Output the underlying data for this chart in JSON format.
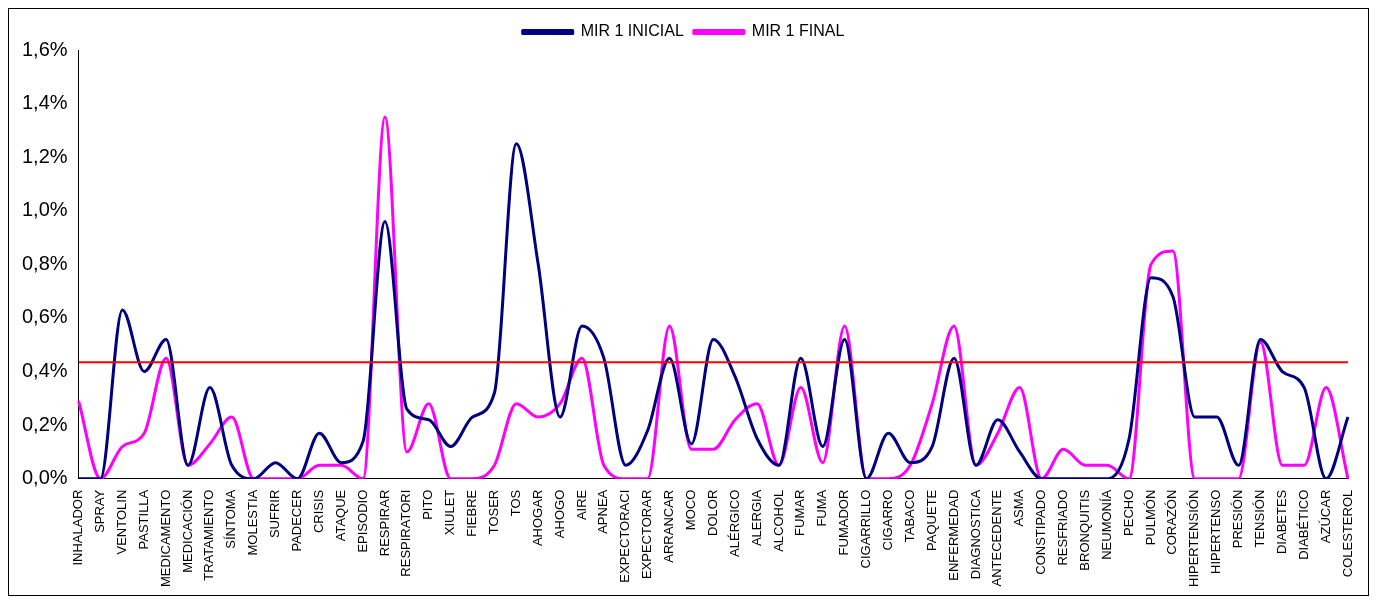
{
  "chart_data": {
    "type": "line",
    "categories": [
      "INHALADOR",
      "SPRAY",
      "VENTOLIN",
      "PASTILLA",
      "MEDICAMENTO",
      "MEDICACIÓN",
      "TRATAMIENTO",
      "SÍNTOMA",
      "MOLESTIA",
      "SUFRIR",
      "PADECER",
      "CRISIS",
      "ATAQUE",
      "EPISODIO",
      "RESPIRAR",
      "RESPIRATORI",
      "PITO",
      "XIULET",
      "FIEBRE",
      "TOSER",
      "TOS",
      "AHOGAR",
      "AHOGO",
      "AIRE",
      "APNEA",
      "EXPECTORACI",
      "EXPECTORAR",
      "ARRANCAR",
      "MOCO",
      "DOLOR",
      "ALÉRGICO",
      "ALERGIA",
      "ALCOHOL",
      "FUMAR",
      "FUMA",
      "FUMADOR",
      "CIGARRILLO",
      "CIGARRO",
      "TABACO",
      "PAQUETE",
      "ENFERMEDAD",
      "DIAGNOSTICA",
      "ANTECEDENTE",
      "ASMA",
      "CONSTIPADO",
      "RESFRIADO",
      "BRONQUITIS",
      "NEUMONÍA",
      "PECHO",
      "PULMÓN",
      "CORAZÓN",
      "HIPERTENSIÓN",
      "HIPERTENSO",
      "PRESIÓN",
      "TENSIÓN",
      "DIABETES",
      "DIABÉTICO",
      "AZÚCAR",
      "COLESTEROL"
    ],
    "series": [
      {
        "name": "MIR 1 INICIAL",
        "color": "#000080",
        "values": [
          0,
          0,
          0.63,
          0.4,
          0.52,
          0.05,
          0.34,
          0.05,
          0,
          0.06,
          0,
          0.17,
          0.06,
          0.14,
          0.96,
          0.26,
          0.22,
          0.12,
          0.23,
          0.32,
          1.25,
          0.8,
          0.23,
          0.57,
          0.45,
          0.05,
          0.18,
          0.45,
          0.13,
          0.52,
          0.38,
          0.15,
          0.05,
          0.45,
          0.12,
          0.52,
          0,
          0.17,
          0.06,
          0.12,
          0.45,
          0.05,
          0.22,
          0.1,
          0,
          0,
          0,
          0,
          0.15,
          0.75,
          0.68,
          0.23,
          0.23,
          0.05,
          0.52,
          0.4,
          0.34,
          0,
          0.23
        ]
      },
      {
        "name": "MIR 1 FINAL",
        "color": "#ff00ff",
        "values": [
          0.29,
          0,
          0.12,
          0.17,
          0.45,
          0.05,
          0.13,
          0.23,
          0,
          0,
          0,
          0.05,
          0.05,
          0,
          1.35,
          0.1,
          0.28,
          0,
          0,
          0.05,
          0.28,
          0.23,
          0.28,
          0.45,
          0.05,
          0,
          0,
          0.57,
          0.11,
          0.11,
          0.22,
          0.28,
          0.05,
          0.34,
          0.06,
          0.57,
          0,
          0,
          0.05,
          0.28,
          0.57,
          0.05,
          0.17,
          0.34,
          0,
          0.11,
          0.05,
          0.05,
          0,
          0.8,
          0.85,
          0,
          0,
          0,
          0.51,
          0.05,
          0.05,
          0.34,
          0
        ]
      }
    ],
    "ylim": [
      0,
      1.6
    ],
    "yticks": [
      {
        "value": 0,
        "label": "0,0%"
      },
      {
        "value": 0.2,
        "label": "0,2%"
      },
      {
        "value": 0.4,
        "label": "0,4%"
      },
      {
        "value": 0.6,
        "label": "0,6%"
      },
      {
        "value": 0.8,
        "label": "0,8%"
      },
      {
        "value": 1.0,
        "label": "1,0%"
      },
      {
        "value": 1.2,
        "label": "1,2%"
      },
      {
        "value": 1.4,
        "label": "1,4%"
      },
      {
        "value": 1.6,
        "label": "1,6%"
      }
    ],
    "ref_lines": [
      {
        "axis": "y",
        "value": 0.435,
        "color": "#ff0000"
      }
    ],
    "legend": "top",
    "grid": false,
    "marker": "none"
  }
}
